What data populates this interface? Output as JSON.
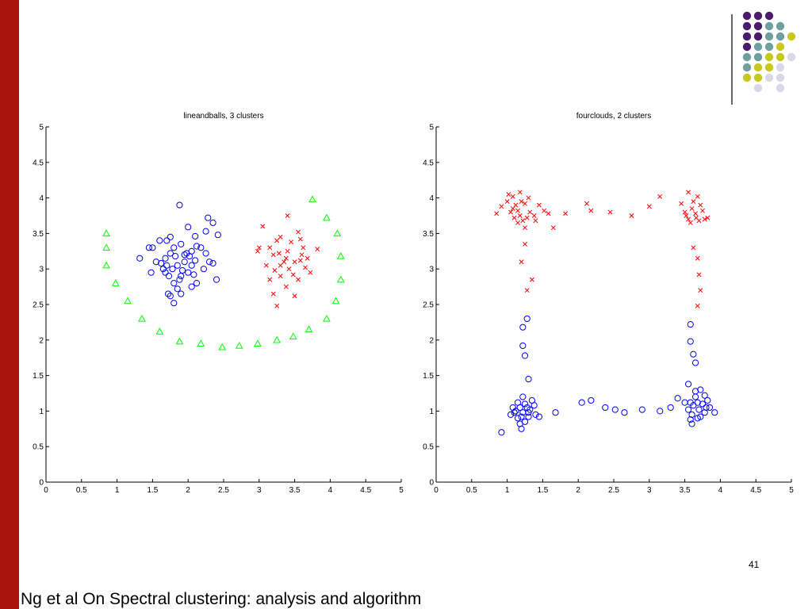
{
  "slide": {
    "number": "41",
    "footer": "Ng et al On Spectral clustering: analysis and algorithm",
    "colors": {
      "left_bar": "#a8150c",
      "deco_purple": "#4b1c6b",
      "deco_teal": "#6f9f9f",
      "deco_yellow": "#c8c81e",
      "deco_lavender": "#d8d8e8",
      "deco_line": "#333333"
    }
  },
  "chart_data": [
    {
      "type": "scatter",
      "title": "lineandballs, 3 clusters",
      "xlabel": "",
      "ylabel": "",
      "xlim": [
        0,
        5
      ],
      "ylim": [
        0,
        5
      ],
      "xticks": [
        "0",
        "0.5",
        "1",
        "1.5",
        "2",
        "2.5",
        "3",
        "3.5",
        "4",
        "4.5",
        "5"
      ],
      "yticks": [
        "0",
        "0.5",
        "1",
        "1.5",
        "2",
        "2.5",
        "3",
        "3.5",
        "4",
        "4.5",
        "5"
      ],
      "grid": false,
      "series": [
        {
          "marker": "circle",
          "color": "#0000ff",
          "points": [
            [
              1.88,
              3.9
            ],
            [
              2.28,
              3.72
            ],
            [
              2.35,
              3.65
            ],
            [
              2.42,
              3.48
            ],
            [
              2.25,
              3.53
            ],
            [
              2.1,
              3.46
            ],
            [
              2.0,
              3.59
            ],
            [
              1.75,
              3.45
            ],
            [
              1.7,
              3.4
            ],
            [
              1.6,
              3.4
            ],
            [
              1.5,
              3.3
            ],
            [
              1.45,
              3.3
            ],
            [
              1.32,
              3.15
            ],
            [
              1.55,
              3.1
            ],
            [
              1.62,
              3.08
            ],
            [
              1.7,
              3.05
            ],
            [
              1.68,
              3.15
            ],
            [
              1.8,
              3.3
            ],
            [
              1.9,
              3.35
            ],
            [
              1.95,
              3.2
            ],
            [
              2.05,
              3.25
            ],
            [
              2.12,
              3.32
            ],
            [
              2.18,
              3.3
            ],
            [
              2.25,
              3.22
            ],
            [
              2.3,
              3.1
            ],
            [
              2.35,
              3.08
            ],
            [
              2.22,
              3.0
            ],
            [
              2.05,
              3.05
            ],
            [
              2.0,
              2.95
            ],
            [
              1.95,
              3.1
            ],
            [
              1.85,
              3.05
            ],
            [
              1.78,
              3.0
            ],
            [
              1.73,
              2.9
            ],
            [
              1.68,
              2.95
            ],
            [
              1.8,
              2.8
            ],
            [
              1.85,
              2.72
            ],
            [
              1.75,
              2.62
            ],
            [
              1.8,
              2.52
            ],
            [
              1.72,
              2.65
            ],
            [
              1.9,
              2.65
            ],
            [
              2.05,
              2.75
            ],
            [
              2.12,
              2.8
            ],
            [
              2.4,
              2.85
            ],
            [
              1.48,
              2.95
            ],
            [
              1.9,
              2.9
            ],
            [
              2.1,
              3.12
            ],
            [
              1.98,
              3.22
            ],
            [
              1.82,
              3.18
            ],
            [
              1.65,
              3.0
            ],
            [
              1.92,
              2.98
            ],
            [
              2.02,
              3.18
            ],
            [
              1.75,
              3.22
            ],
            [
              1.88,
              2.85
            ],
            [
              2.08,
              2.92
            ]
          ]
        },
        {
          "marker": "x",
          "color": "#ff0000",
          "points": [
            [
              3.05,
              3.6
            ],
            [
              3.4,
              3.75
            ],
            [
              3.25,
              3.4
            ],
            [
              3.3,
              3.45
            ],
            [
              3.55,
              3.52
            ],
            [
              3.58,
              3.42
            ],
            [
              3.82,
              3.28
            ],
            [
              3.0,
              3.3
            ],
            [
              2.98,
              3.25
            ],
            [
              3.15,
              3.3
            ],
            [
              3.2,
              3.2
            ],
            [
              3.35,
              3.1
            ],
            [
              3.42,
              3.0
            ],
            [
              3.5,
              3.1
            ],
            [
              3.58,
              3.12
            ],
            [
              3.65,
              3.02
            ],
            [
              3.72,
              2.95
            ],
            [
              3.4,
              3.25
            ],
            [
              3.3,
              3.05
            ],
            [
              3.22,
              2.98
            ],
            [
              3.15,
              2.85
            ],
            [
              3.2,
              2.65
            ],
            [
              3.25,
              2.48
            ],
            [
              3.38,
              2.75
            ],
            [
              3.5,
              2.62
            ],
            [
              3.55,
              2.85
            ],
            [
              3.6,
              3.2
            ],
            [
              3.45,
              3.38
            ],
            [
              3.3,
              2.9
            ],
            [
              3.62,
              3.3
            ],
            [
              3.1,
              3.05
            ],
            [
              3.68,
              3.15
            ],
            [
              3.48,
              2.92
            ],
            [
              3.38,
              3.15
            ],
            [
              3.28,
              3.22
            ]
          ]
        },
        {
          "marker": "triangle",
          "color": "#00ff00",
          "points": [
            [
              0.85,
              3.5
            ],
            [
              0.85,
              3.3
            ],
            [
              0.85,
              3.05
            ],
            [
              0.98,
              2.8
            ],
            [
              1.15,
              2.55
            ],
            [
              1.35,
              2.3
            ],
            [
              1.6,
              2.12
            ],
            [
              1.88,
              1.98
            ],
            [
              2.18,
              1.95
            ],
            [
              2.48,
              1.9
            ],
            [
              2.72,
              1.92
            ],
            [
              2.98,
              1.95
            ],
            [
              3.25,
              2.0
            ],
            [
              3.48,
              2.05
            ],
            [
              3.7,
              2.15
            ],
            [
              3.95,
              2.3
            ],
            [
              4.08,
              2.55
            ],
            [
              4.15,
              2.85
            ],
            [
              4.15,
              3.18
            ],
            [
              4.1,
              3.5
            ],
            [
              3.95,
              3.72
            ],
            [
              3.75,
              3.98
            ]
          ]
        }
      ]
    },
    {
      "type": "scatter",
      "title": "fourclouds, 2 clusters",
      "xlabel": "",
      "ylabel": "",
      "xlim": [
        0,
        5
      ],
      "ylim": [
        0,
        5
      ],
      "xticks": [
        "0",
        "0.5",
        "1",
        "1.5",
        "2",
        "2.5",
        "3",
        "3.5",
        "4",
        "4.5",
        "5"
      ],
      "yticks": [
        "0",
        "0.5",
        "1",
        "1.5",
        "2",
        "2.5",
        "3",
        "3.5",
        "4",
        "4.5",
        "5"
      ],
      "grid": false,
      "series": [
        {
          "marker": "x",
          "color": "#ff0000",
          "points": [
            [
              0.85,
              3.78
            ],
            [
              0.92,
              3.88
            ],
            [
              1.0,
              3.95
            ],
            [
              1.02,
              4.05
            ],
            [
              1.08,
              4.02
            ],
            [
              1.12,
              3.9
            ],
            [
              1.15,
              3.82
            ],
            [
              1.1,
              3.72
            ],
            [
              1.05,
              3.8
            ],
            [
              1.18,
              3.75
            ],
            [
              1.22,
              3.68
            ],
            [
              1.28,
              3.72
            ],
            [
              1.32,
              3.8
            ],
            [
              1.25,
              3.92
            ],
            [
              1.18,
              4.08
            ],
            [
              1.3,
              4.0
            ],
            [
              1.38,
              3.75
            ],
            [
              1.4,
              3.68
            ],
            [
              1.15,
              3.65
            ],
            [
              1.25,
              3.58
            ],
            [
              1.45,
              3.9
            ],
            [
              1.52,
              3.82
            ],
            [
              1.58,
              3.78
            ],
            [
              1.65,
              3.58
            ],
            [
              1.82,
              3.78
            ],
            [
              2.12,
              3.92
            ],
            [
              2.18,
              3.82
            ],
            [
              2.45,
              3.8
            ],
            [
              2.75,
              3.75
            ],
            [
              3.0,
              3.88
            ],
            [
              3.15,
              4.02
            ],
            [
              3.45,
              3.92
            ],
            [
              3.5,
              3.8
            ],
            [
              3.55,
              3.7
            ],
            [
              3.6,
              3.85
            ],
            [
              3.65,
              3.78
            ],
            [
              3.7,
              3.68
            ],
            [
              3.75,
              3.82
            ],
            [
              3.78,
              3.7
            ],
            [
              3.62,
              3.95
            ],
            [
              3.55,
              4.08
            ],
            [
              3.68,
              4.02
            ],
            [
              3.58,
              3.65
            ],
            [
              3.52,
              3.75
            ],
            [
              3.72,
              3.9
            ],
            [
              3.82,
              3.72
            ],
            [
              3.66,
              3.72
            ],
            [
              1.25,
              3.35
            ],
            [
              1.2,
              3.1
            ],
            [
              1.35,
              2.85
            ],
            [
              1.28,
              2.7
            ],
            [
              3.62,
              3.3
            ],
            [
              3.68,
              3.15
            ],
            [
              3.7,
              2.92
            ],
            [
              3.72,
              2.7
            ],
            [
              3.68,
              2.48
            ],
            [
              1.08,
              3.85
            ],
            [
              1.2,
              3.95
            ]
          ]
        },
        {
          "marker": "circle",
          "color": "#0000ff",
          "points": [
            [
              0.92,
              0.7
            ],
            [
              1.05,
              0.95
            ],
            [
              1.08,
              1.05
            ],
            [
              1.12,
              1.0
            ],
            [
              1.15,
              0.9
            ],
            [
              1.18,
              0.82
            ],
            [
              1.2,
              0.75
            ],
            [
              1.22,
              0.98
            ],
            [
              1.25,
              1.1
            ],
            [
              1.28,
              1.05
            ],
            [
              1.3,
              0.92
            ],
            [
              1.32,
              1.02
            ],
            [
              1.35,
              1.15
            ],
            [
              1.38,
              1.08
            ],
            [
              1.22,
              1.2
            ],
            [
              1.15,
              1.12
            ],
            [
              1.4,
              0.95
            ],
            [
              1.45,
              0.92
            ],
            [
              1.25,
              0.85
            ],
            [
              1.18,
              1.05
            ],
            [
              1.3,
              0.98
            ],
            [
              1.68,
              0.98
            ],
            [
              2.05,
              1.12
            ],
            [
              2.18,
              1.15
            ],
            [
              2.38,
              1.05
            ],
            [
              2.52,
              1.02
            ],
            [
              2.65,
              0.98
            ],
            [
              2.9,
              1.02
            ],
            [
              3.15,
              1.0
            ],
            [
              3.3,
              1.05
            ],
            [
              3.4,
              1.18
            ],
            [
              3.5,
              1.12
            ],
            [
              3.55,
              1.02
            ],
            [
              3.58,
              0.88
            ],
            [
              3.6,
              0.82
            ],
            [
              3.62,
              1.08
            ],
            [
              3.65,
              1.2
            ],
            [
              3.68,
              1.12
            ],
            [
              3.7,
              1.02
            ],
            [
              3.72,
              0.92
            ],
            [
              3.75,
              1.1
            ],
            [
              3.78,
              0.98
            ],
            [
              3.82,
              1.15
            ],
            [
              3.85,
              1.05
            ],
            [
              3.92,
              0.98
            ],
            [
              3.65,
              1.28
            ],
            [
              3.72,
              1.3
            ],
            [
              3.55,
              1.38
            ],
            [
              3.6,
              0.95
            ],
            [
              3.8,
              1.05
            ],
            [
              1.28,
              2.3
            ],
            [
              1.22,
              2.18
            ],
            [
              1.22,
              1.92
            ],
            [
              1.25,
              1.78
            ],
            [
              1.3,
              1.45
            ],
            [
              3.58,
              2.22
            ],
            [
              3.58,
              1.98
            ],
            [
              3.62,
              1.8
            ],
            [
              3.65,
              1.68
            ],
            [
              3.58,
              1.12
            ],
            [
              1.1,
              0.98
            ],
            [
              1.2,
              0.92
            ],
            [
              3.68,
              0.9
            ],
            [
              3.78,
              1.22
            ]
          ]
        }
      ]
    }
  ]
}
